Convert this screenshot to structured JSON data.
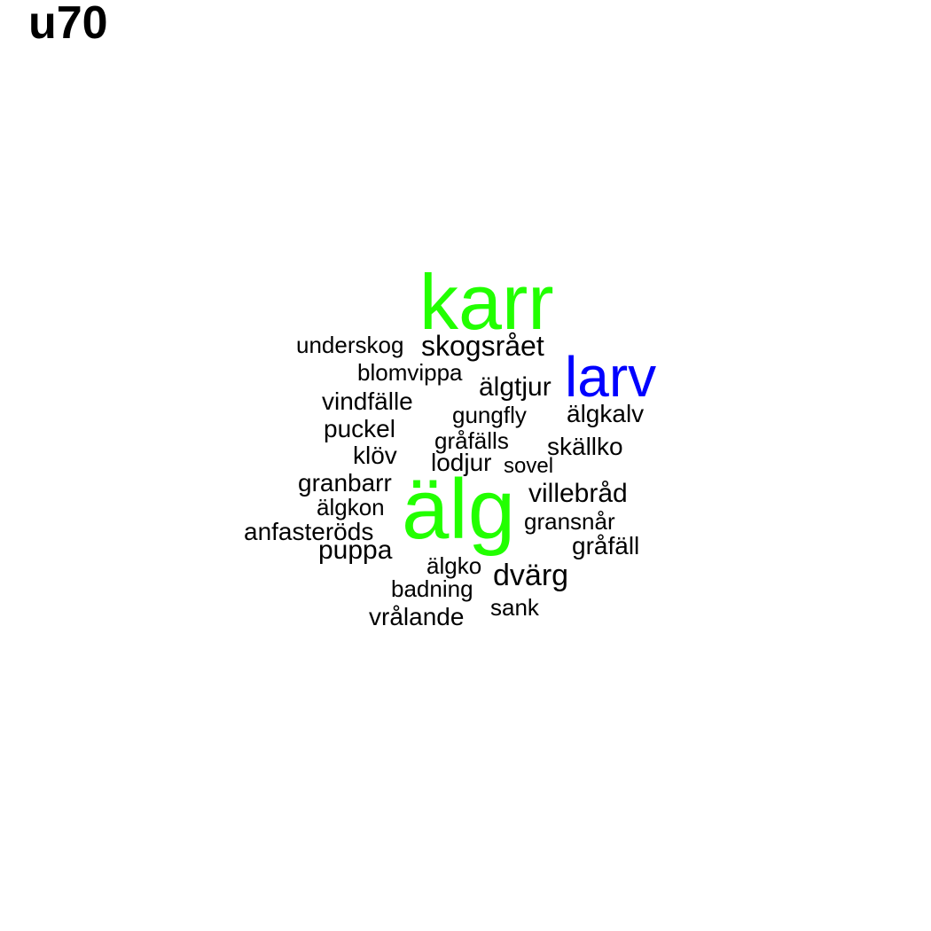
{
  "title": "u70",
  "colors": {
    "green": "#22ff00",
    "blue": "#0000ff",
    "black": "#000000"
  },
  "words": [
    {
      "text": "karr",
      "color": "green"
    },
    {
      "text": "underskog",
      "color": "black"
    },
    {
      "text": "skogsrået",
      "color": "black"
    },
    {
      "text": "blomvippa",
      "color": "black"
    },
    {
      "text": "larv",
      "color": "blue"
    },
    {
      "text": "älgtjur",
      "color": "black"
    },
    {
      "text": "vindfälle",
      "color": "black"
    },
    {
      "text": "gungfly",
      "color": "black"
    },
    {
      "text": "älgkalv",
      "color": "black"
    },
    {
      "text": "puckel",
      "color": "black"
    },
    {
      "text": "gråfälls",
      "color": "black"
    },
    {
      "text": "skällko",
      "color": "black"
    },
    {
      "text": "klöv",
      "color": "black"
    },
    {
      "text": "lodjur",
      "color": "black"
    },
    {
      "text": "sovel",
      "color": "black"
    },
    {
      "text": "granbarr",
      "color": "black"
    },
    {
      "text": "älg",
      "color": "green"
    },
    {
      "text": "villebråd",
      "color": "black"
    },
    {
      "text": "älgkon",
      "color": "black"
    },
    {
      "text": "gransnår",
      "color": "black"
    },
    {
      "text": "anfasteröds",
      "color": "black"
    },
    {
      "text": "gråfäll",
      "color": "black"
    },
    {
      "text": "puppa",
      "color": "black"
    },
    {
      "text": "älgko",
      "color": "black"
    },
    {
      "text": "dvärg",
      "color": "black"
    },
    {
      "text": "badning",
      "color": "black"
    },
    {
      "text": "sank",
      "color": "black"
    },
    {
      "text": "vrålande",
      "color": "black"
    }
  ]
}
